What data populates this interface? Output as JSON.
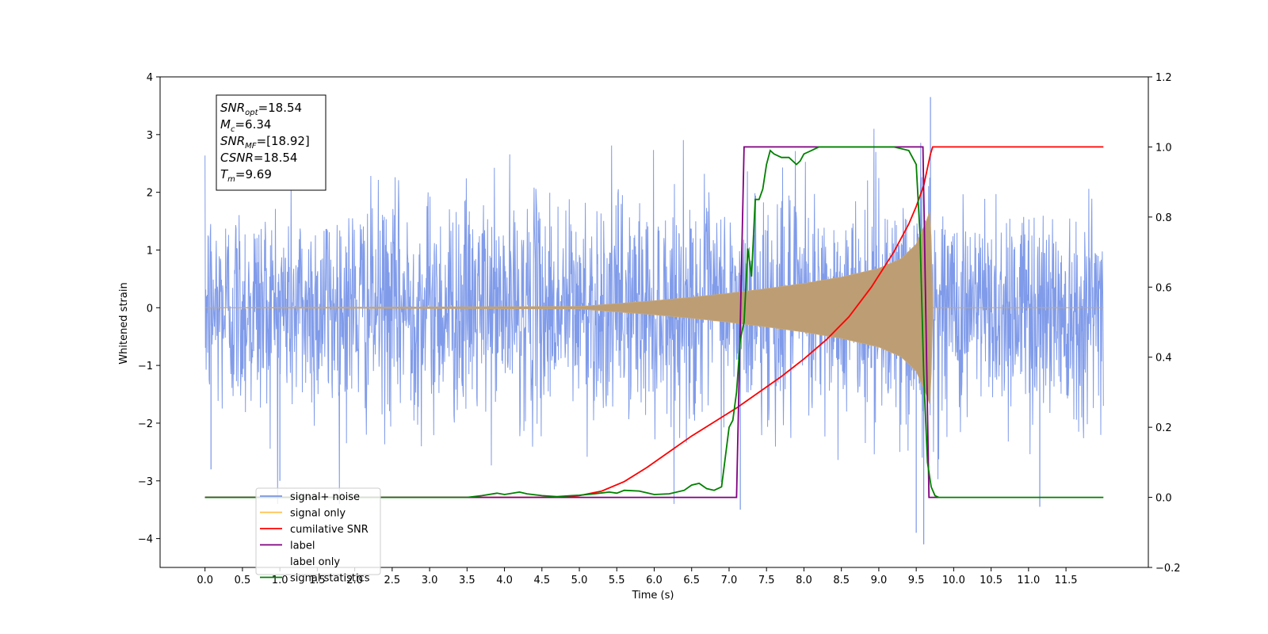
{
  "chart_data": {
    "type": "line",
    "xlabel": "Time (s)",
    "ylabel_left": "Whitened strain",
    "ylabel_right": "",
    "xlim": [
      -0.6,
      12.6
    ],
    "ylim_left": [
      -4.5,
      4.0
    ],
    "ylim_right": [
      -0.2,
      1.2
    ],
    "x_ticks": [
      "0.0",
      "0.5",
      "1.0",
      "1.5",
      "2.0",
      "2.5",
      "3.0",
      "3.5",
      "4.0",
      "4.5",
      "5.0",
      "5.5",
      "6.0",
      "6.5",
      "7.0",
      "7.5",
      "8.0",
      "8.5",
      "9.0",
      "9.5",
      "10.0",
      "10.5",
      "11.0",
      "11.5"
    ],
    "y_ticks_left": [
      "4",
      "3",
      "2",
      "1",
      "0",
      "−1",
      "−2",
      "−3",
      "−4"
    ],
    "y_ticks_right": [
      "1.2",
      "1.0",
      "0.8",
      "0.6",
      "0.4",
      "0.2",
      "0.0",
      "−0.2"
    ],
    "grid": false,
    "legend_position": "lower-left",
    "annotation": {
      "lines": [
        {
          "sym": "SNR",
          "sub": "opt",
          "val": "=18.54"
        },
        {
          "sym": "M",
          "sub": "c",
          "val": "=6.34"
        },
        {
          "sym": "SNR",
          "sub": "MF",
          "val": "=[18.92]"
        },
        {
          "sym": "CSNR",
          "sub": "",
          "val": "=18.54"
        },
        {
          "sym": "T",
          "sub": "m",
          "val": "=9.69"
        }
      ]
    },
    "series": [
      {
        "name": "signal+ noise",
        "color": "#7996e8",
        "axis": "left",
        "summary": {
          "x_start": 0.0,
          "x_end": 12.0,
          "amplitude_envelope": [
            [
              0.0,
              2.0
            ],
            [
              7.2,
              2.0
            ],
            [
              9.5,
              2.6
            ],
            [
              9.69,
              3.6
            ],
            [
              12.0,
              2.0
            ]
          ],
          "notable_peaks": [
            [
              0.08,
              -2.8
            ],
            [
              1.0,
              -3.0
            ],
            [
              7.15,
              -3.5
            ],
            [
              9.5,
              -3.9
            ],
            [
              9.6,
              -4.1
            ],
            [
              9.69,
              3.65
            ],
            [
              11.15,
              -3.45
            ]
          ]
        }
      },
      {
        "name": "signal only",
        "color": "#ffc04d",
        "axis": "left",
        "envelope": [
          [
            0.0,
            0.0
          ],
          [
            5.0,
            0.02
          ],
          [
            5.5,
            0.07
          ],
          [
            6.0,
            0.12
          ],
          [
            6.5,
            0.18
          ],
          [
            7.0,
            0.25
          ],
          [
            7.5,
            0.33
          ],
          [
            8.0,
            0.42
          ],
          [
            8.5,
            0.53
          ],
          [
            9.0,
            0.68
          ],
          [
            9.3,
            0.85
          ],
          [
            9.5,
            1.1
          ],
          [
            9.62,
            1.45
          ],
          [
            9.69,
            1.7
          ],
          [
            9.72,
            0.0
          ],
          [
            12.0,
            0.0
          ]
        ]
      },
      {
        "name": "cumilative SNR",
        "color": "#ff0000",
        "axis": "right",
        "x": [
          0.0,
          4.5,
          4.8,
          5.0,
          5.3,
          5.6,
          5.9,
          6.2,
          6.5,
          6.8,
          7.1,
          7.4,
          7.7,
          8.0,
          8.3,
          8.6,
          8.9,
          9.2,
          9.4,
          9.5,
          9.6,
          9.65,
          9.69,
          9.72,
          12.0
        ],
        "values": [
          0.0,
          0.0,
          0.0,
          0.005,
          0.018,
          0.045,
          0.085,
          0.13,
          0.175,
          0.215,
          0.255,
          0.3,
          0.345,
          0.395,
          0.45,
          0.515,
          0.6,
          0.7,
          0.78,
          0.83,
          0.89,
          0.94,
          0.98,
          1.0,
          1.0
        ]
      },
      {
        "name": "label",
        "color": "#800080",
        "axis": "right",
        "x": [
          0.0,
          7.1,
          7.2,
          9.59,
          9.67,
          9.72,
          9.8
        ],
        "values": [
          0.0,
          0.0,
          1.0,
          1.0,
          0.0,
          0.0,
          0.0
        ]
      },
      {
        "name": "label only",
        "color": "#ffffff",
        "axis": "right",
        "legend_only": true
      },
      {
        "name": "signal statistics",
        "color": "#008000",
        "axis": "right",
        "x": [
          0.0,
          3.0,
          3.5,
          3.7,
          3.9,
          4.0,
          4.2,
          4.3,
          4.5,
          4.7,
          4.9,
          5.0,
          5.2,
          5.4,
          5.5,
          5.6,
          5.8,
          6.0,
          6.2,
          6.4,
          6.5,
          6.6,
          6.7,
          6.8,
          6.9,
          7.0,
          7.05,
          7.1,
          7.15,
          7.2,
          7.25,
          7.3,
          7.35,
          7.4,
          7.45,
          7.5,
          7.55,
          7.6,
          7.7,
          7.8,
          7.9,
          7.95,
          8.0,
          8.1,
          8.2,
          8.4,
          8.6,
          8.8,
          9.0,
          9.2,
          9.4,
          9.5,
          9.55,
          9.6,
          9.65,
          9.7,
          9.75,
          9.8,
          9.9,
          12.0
        ],
        "values": [
          0.0,
          0.0,
          0.0,
          0.005,
          0.012,
          0.008,
          0.015,
          0.01,
          0.005,
          0.002,
          0.005,
          0.006,
          0.01,
          0.015,
          0.012,
          0.02,
          0.018,
          0.008,
          0.01,
          0.02,
          0.035,
          0.04,
          0.025,
          0.02,
          0.03,
          0.2,
          0.22,
          0.3,
          0.45,
          0.5,
          0.71,
          0.63,
          0.85,
          0.85,
          0.88,
          0.95,
          0.99,
          0.98,
          0.97,
          0.97,
          0.95,
          0.96,
          0.98,
          0.99,
          1.0,
          1.0,
          1.0,
          1.0,
          1.0,
          1.0,
          0.99,
          0.95,
          0.75,
          0.35,
          0.1,
          0.03,
          0.005,
          0.0,
          0.0,
          0.0
        ]
      }
    ]
  }
}
